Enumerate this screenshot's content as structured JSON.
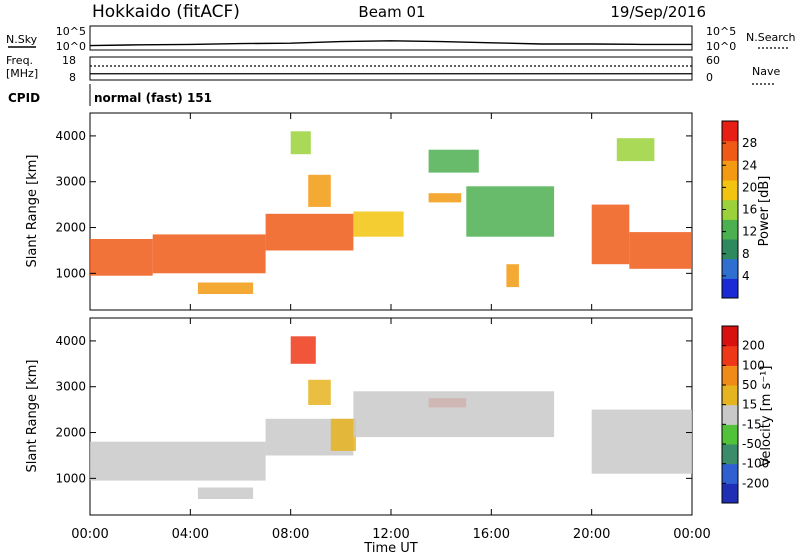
{
  "header": {
    "radar": "Hokkaido (fitACF)",
    "beam": "Beam 01",
    "date": "19/Sep/2016"
  },
  "time_axis": {
    "label": "Time UT",
    "ticks": [
      "00:00",
      "04:00",
      "08:00",
      "12:00",
      "16:00",
      "20:00",
      "00:00"
    ],
    "hours": [
      0,
      4,
      8,
      12,
      16,
      20,
      24
    ]
  },
  "nsky_panel": {
    "label": "N.Sky",
    "left_ticks": [
      "10^5",
      "10^0"
    ],
    "right_ticks": [
      "10^5",
      "10^0"
    ],
    "right_label": "N.Search"
  },
  "freq_panel": {
    "label_line1": "Freq.",
    "label_line2": "[MHz]",
    "left_ticks": [
      "18",
      "8"
    ],
    "right_ticks": [
      "60",
      "0"
    ],
    "right_label": "Nave"
  },
  "cpid_panel": {
    "label": "CPID",
    "value": "normal (fast) 151"
  },
  "power_panel": {
    "ylabel": "Slant Range [km]",
    "yticks": [
      "4000",
      "3000",
      "2000",
      "1000"
    ],
    "colorbar_label": "Power [dB]",
    "colorbar_ticks": [
      "28",
      "24",
      "20",
      "16",
      "12",
      "8",
      "4"
    ]
  },
  "velocity_panel": {
    "ylabel": "Slant Range [km]",
    "yticks": [
      "4000",
      "3000",
      "2000",
      "1000"
    ],
    "colorbar_label": "Velocity [m s⁻¹]",
    "colorbar_ticks": [
      "200",
      "100",
      "50",
      "15",
      "-15",
      "-50",
      "-100",
      "-200"
    ]
  },
  "colors": {
    "power_scale": [
      "#1a2bd6",
      "#2f6fd0",
      "#2e8a5e",
      "#4caf50",
      "#9bd13a",
      "#f2c40f",
      "#f39a12",
      "#ef5a17",
      "#e61e14"
    ],
    "velocity_scale": [
      "#1f2fb5",
      "#2f5fd0",
      "#3a8c6a",
      "#52c23a",
      "#c9c9c9",
      "#e6b420",
      "#f08a18",
      "#ef3818",
      "#d81010"
    ]
  },
  "chart_data": [
    {
      "type": "line",
      "title": "N.Sky",
      "xlim": [
        0,
        24
      ],
      "ylim": [
        0,
        5
      ],
      "yscale": "log",
      "x": [
        0,
        2,
        4,
        6,
        8,
        10,
        12,
        14,
        16,
        18,
        20,
        22,
        24
      ],
      "y": [
        0.6,
        0.8,
        0.9,
        1.1,
        1.2,
        1.6,
        1.8,
        1.6,
        1.3,
        1.0,
        1.0,
        0.9,
        0.9
      ]
    },
    {
      "type": "line",
      "title": "Freq.",
      "xlim": [
        0,
        24
      ],
      "ylim": [
        8,
        18
      ],
      "x": [
        0,
        24
      ],
      "y": [
        10.5,
        10.5
      ]
    },
    {
      "type": "heatmap",
      "title": "Power [dB]",
      "xlim": [
        0,
        24
      ],
      "ylim": [
        200,
        4500
      ],
      "zlim": [
        0,
        30
      ],
      "patches": [
        {
          "t0": 0.0,
          "t1": 2.5,
          "r0": 950,
          "r1": 1750,
          "v": 25
        },
        {
          "t0": 2.5,
          "t1": 7.0,
          "r0": 1000,
          "r1": 1850,
          "v": 25
        },
        {
          "t0": 4.3,
          "t1": 6.5,
          "r0": 550,
          "r1": 800,
          "v": 22
        },
        {
          "t0": 7.0,
          "t1": 10.5,
          "r0": 1500,
          "r1": 2300,
          "v": 24
        },
        {
          "t0": 8.7,
          "t1": 9.6,
          "r0": 2450,
          "r1": 3150,
          "v": 22
        },
        {
          "t0": 8.0,
          "t1": 8.8,
          "r0": 3600,
          "r1": 4100,
          "v": 16
        },
        {
          "t0": 10.5,
          "t1": 12.5,
          "r0": 1800,
          "r1": 2350,
          "v": 18
        },
        {
          "t0": 13.5,
          "t1": 15.5,
          "r0": 3200,
          "r1": 3700,
          "v": 12
        },
        {
          "t0": 13.5,
          "t1": 14.8,
          "r0": 2550,
          "r1": 2750,
          "v": 20
        },
        {
          "t0": 15.0,
          "t1": 18.5,
          "r0": 1800,
          "r1": 2900,
          "v": 10
        },
        {
          "t0": 16.6,
          "t1": 17.1,
          "r0": 700,
          "r1": 1200,
          "v": 20
        },
        {
          "t0": 20.0,
          "t1": 21.5,
          "r0": 1200,
          "r1": 2500,
          "v": 24
        },
        {
          "t0": 21.5,
          "t1": 24.0,
          "r0": 1100,
          "r1": 1900,
          "v": 24
        },
        {
          "t0": 21.0,
          "t1": 22.5,
          "r0": 3450,
          "r1": 3950,
          "v": 16
        }
      ]
    },
    {
      "type": "heatmap",
      "title": "Velocity [m s⁻¹]",
      "xlim": [
        0,
        24
      ],
      "ylim": [
        200,
        4500
      ],
      "zlim": [
        -200,
        200
      ],
      "patches": [
        {
          "t0": 0.0,
          "t1": 7.0,
          "r0": 950,
          "r1": 1800,
          "v": 0
        },
        {
          "t0": 7.0,
          "t1": 10.5,
          "r0": 1500,
          "r1": 2300,
          "v": 0
        },
        {
          "t0": 4.3,
          "t1": 6.5,
          "r0": 550,
          "r1": 800,
          "v": 0
        },
        {
          "t0": 8.0,
          "t1": 9.0,
          "r0": 3500,
          "r1": 4100,
          "v": 150
        },
        {
          "t0": 8.7,
          "t1": 9.6,
          "r0": 2600,
          "r1": 3150,
          "v": 40
        },
        {
          "t0": 9.6,
          "t1": 10.6,
          "r0": 1600,
          "r1": 2300,
          "v": 40
        },
        {
          "t0": 13.5,
          "t1": 15.0,
          "r0": 2550,
          "r1": 2750,
          "v": 120
        },
        {
          "t0": 10.5,
          "t1": 18.5,
          "r0": 1900,
          "r1": 2900,
          "v": 0
        },
        {
          "t0": 20.0,
          "t1": 24.0,
          "r0": 1100,
          "r1": 2500,
          "v": 0
        }
      ]
    }
  ]
}
